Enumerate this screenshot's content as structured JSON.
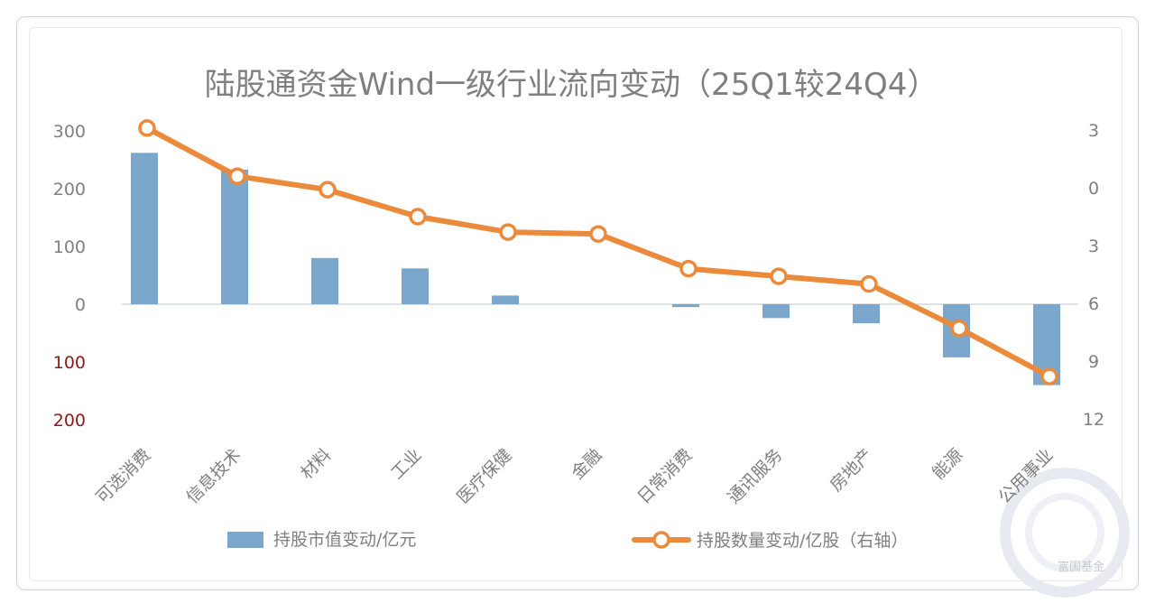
{
  "chart_data": {
    "type": "bar+line",
    "title": "陆股通资金Wind一级行业流向变动（25Q1较24Q4）",
    "categories": [
      "可选消费",
      "信息技术",
      "材料",
      "工业",
      "医疗保健",
      "金融",
      "日常消费",
      "通讯服务",
      "房地产",
      "能源",
      "公用事业"
    ],
    "series": [
      {
        "name": "持股市值变动/亿元",
        "type": "bar",
        "axis": "left",
        "color": "#7ba7cc",
        "values": [
          262,
          233,
          80,
          62,
          15,
          0,
          -5,
          -24,
          -33,
          -92,
          -140
        ]
      },
      {
        "name": "持股数量变动/亿股（右轴）",
        "type": "line",
        "axis": "right",
        "color": "#ec8a3b",
        "values": [
          -3.1,
          -0.6,
          0.1,
          1.5,
          2.3,
          2.4,
          4.2,
          4.6,
          5.0,
          7.3,
          9.8
        ]
      }
    ],
    "left_axis": {
      "ticks": [
        300,
        200,
        100,
        0,
        -100,
        -200
      ],
      "tick_labels": [
        "300",
        "200",
        "100",
        "0",
        "100",
        "200"
      ],
      "range": [
        -200,
        300
      ]
    },
    "right_axis": {
      "reversed": true,
      "tick_values": [
        -3,
        0,
        3,
        6,
        9,
        12
      ],
      "tick_labels": [
        "3",
        "0",
        "3",
        "6",
        "9",
        "12"
      ],
      "range": [
        -3,
        12
      ]
    },
    "grid": false,
    "legend_position": "bottom"
  },
  "watermark": {
    "text": "富国基金"
  }
}
